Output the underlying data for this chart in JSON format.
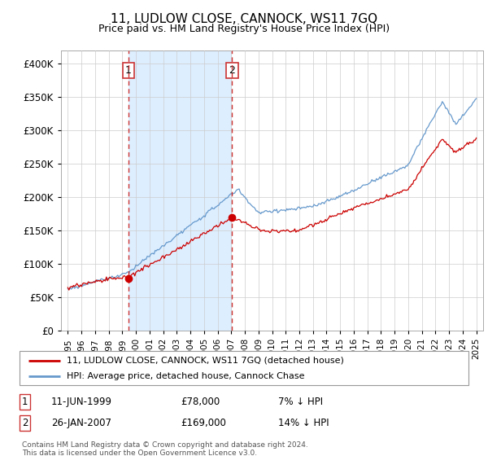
{
  "title": "11, LUDLOW CLOSE, CANNOCK, WS11 7GQ",
  "subtitle": "Price paid vs. HM Land Registry's House Price Index (HPI)",
  "legend_line1": "11, LUDLOW CLOSE, CANNOCK, WS11 7GQ (detached house)",
  "legend_line2": "HPI: Average price, detached house, Cannock Chase",
  "footer": "Contains HM Land Registry data © Crown copyright and database right 2024.\nThis data is licensed under the Open Government Licence v3.0.",
  "transaction1_label": "1",
  "transaction1_date": "11-JUN-1999",
  "transaction1_price": "£78,000",
  "transaction1_hpi": "7% ↓ HPI",
  "transaction1_year": 1999.44,
  "transaction1_value": 78000,
  "transaction2_label": "2",
  "transaction2_date": "26-JAN-2007",
  "transaction2_price": "£169,000",
  "transaction2_hpi": "14% ↓ HPI",
  "transaction2_year": 2007.07,
  "transaction2_value": 169000,
  "vline1_x": 1999.44,
  "vline2_x": 2007.07,
  "ylim_min": 0,
  "ylim_max": 420000,
  "yticks": [
    0,
    50000,
    100000,
    150000,
    200000,
    250000,
    300000,
    350000,
    400000
  ],
  "xlim_min": 1994.5,
  "xlim_max": 2025.5,
  "red_color": "#cc0000",
  "blue_color": "#6699cc",
  "vline_color": "#cc3333",
  "shade_color": "#ddeeff",
  "background_color": "#ffffff",
  "grid_color": "#cccccc",
  "title_fontsize": 11,
  "subtitle_fontsize": 9
}
